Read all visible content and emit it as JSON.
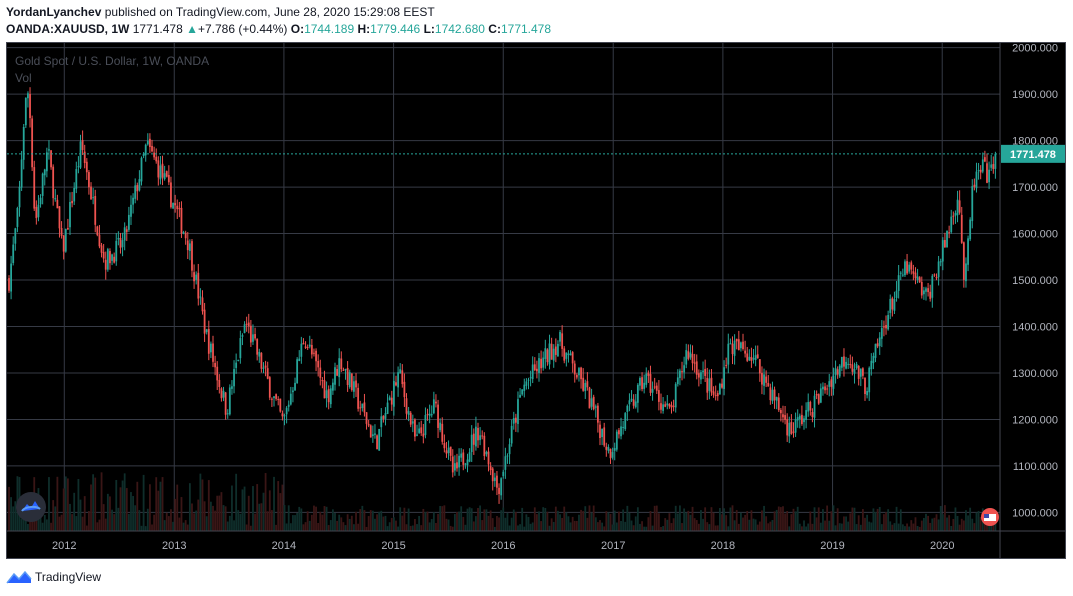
{
  "header": {
    "author": "YordanLyanchev",
    "published_text": "published on TradingView.com, June 28, 2020 15:29:08 EEST"
  },
  "symbol_bar": {
    "symbol": "OANDA:XAUUSD, 1W",
    "last": "1771.478",
    "arrow": "▲",
    "change": "+7.786 (+0.44%)",
    "o_label": "O:",
    "o_value": "1744.189",
    "h_label": "H:",
    "h_value": "1779.446",
    "l_label": "L:",
    "l_value": "1742.680",
    "c_label": "C:",
    "c_value": "1771.478"
  },
  "footer": {
    "brand": "TradingView"
  },
  "colors": {
    "up": "#26a69a",
    "down": "#ef5350",
    "grid": "#363a45",
    "background": "#000000",
    "axis_text": "#b2b5be",
    "price_tag": "#26a69a"
  },
  "chart_data": {
    "type": "candlestick",
    "title": "Gold Spot / U.S. Dollar, 1W, OANDA",
    "volume_label": "Vol",
    "ylim": [
      960,
      2010
    ],
    "y_ticks": [
      "2000.000",
      "1900.000",
      "1800.000",
      "1700.000",
      "1600.000",
      "1500.000",
      "1400.000",
      "1300.000",
      "1200.000",
      "1100.000",
      "1000.000"
    ],
    "x_ticks": [
      "2012",
      "2013",
      "2014",
      "2015",
      "2016",
      "2017",
      "2018",
      "2019",
      "2020"
    ],
    "x_range": [
      "2011-07-01",
      "2020-06-28"
    ],
    "last_price": 1771.478,
    "last_price_label": "1771.478",
    "grid": true,
    "approx_weekly_close_path": [
      [
        "2011-07-01",
        1500
      ],
      [
        "2011-08-01",
        1650
      ],
      [
        "2011-08-22",
        1870
      ],
      [
        "2011-09-05",
        1910
      ],
      [
        "2011-09-26",
        1620
      ],
      [
        "2011-11-07",
        1780
      ],
      [
        "2011-12-26",
        1560
      ],
      [
        "2012-02-27",
        1790
      ],
      [
        "2012-05-14",
        1540
      ],
      [
        "2012-07-16",
        1580
      ],
      [
        "2012-10-01",
        1790
      ],
      [
        "2012-11-26",
        1720
      ],
      [
        "2013-02-18",
        1580
      ],
      [
        "2013-04-15",
        1390
      ],
      [
        "2013-06-24",
        1220
      ],
      [
        "2013-08-26",
        1410
      ],
      [
        "2013-12-30",
        1190
      ],
      [
        "2014-03-10",
        1380
      ],
      [
        "2014-05-26",
        1250
      ],
      [
        "2014-07-07",
        1330
      ],
      [
        "2014-11-03",
        1150
      ],
      [
        "2015-01-19",
        1300
      ],
      [
        "2015-03-16",
        1150
      ],
      [
        "2015-05-18",
        1230
      ],
      [
        "2015-07-20",
        1080
      ],
      [
        "2015-10-12",
        1180
      ],
      [
        "2015-12-14",
        1050
      ],
      [
        "2016-03-07",
        1270
      ],
      [
        "2016-07-04",
        1370
      ],
      [
        "2016-10-03",
        1260
      ],
      [
        "2016-12-19",
        1130
      ],
      [
        "2017-04-17",
        1290
      ],
      [
        "2017-07-10",
        1210
      ],
      [
        "2017-09-04",
        1350
      ],
      [
        "2017-12-11",
        1240
      ],
      [
        "2018-01-22",
        1360
      ],
      [
        "2018-04-09",
        1340
      ],
      [
        "2018-08-13",
        1175
      ],
      [
        "2018-10-29",
        1230
      ],
      [
        "2019-02-18",
        1340
      ],
      [
        "2019-04-22",
        1270
      ],
      [
        "2019-06-24",
        1410
      ],
      [
        "2019-09-02",
        1530
      ],
      [
        "2019-11-11",
        1460
      ],
      [
        "2020-01-06",
        1570
      ],
      [
        "2020-02-24",
        1690
      ],
      [
        "2020-03-16",
        1480
      ],
      [
        "2020-04-13",
        1710
      ],
      [
        "2020-05-18",
        1740
      ],
      [
        "2020-06-08",
        1715
      ],
      [
        "2020-06-22",
        1771.478
      ]
    ]
  }
}
